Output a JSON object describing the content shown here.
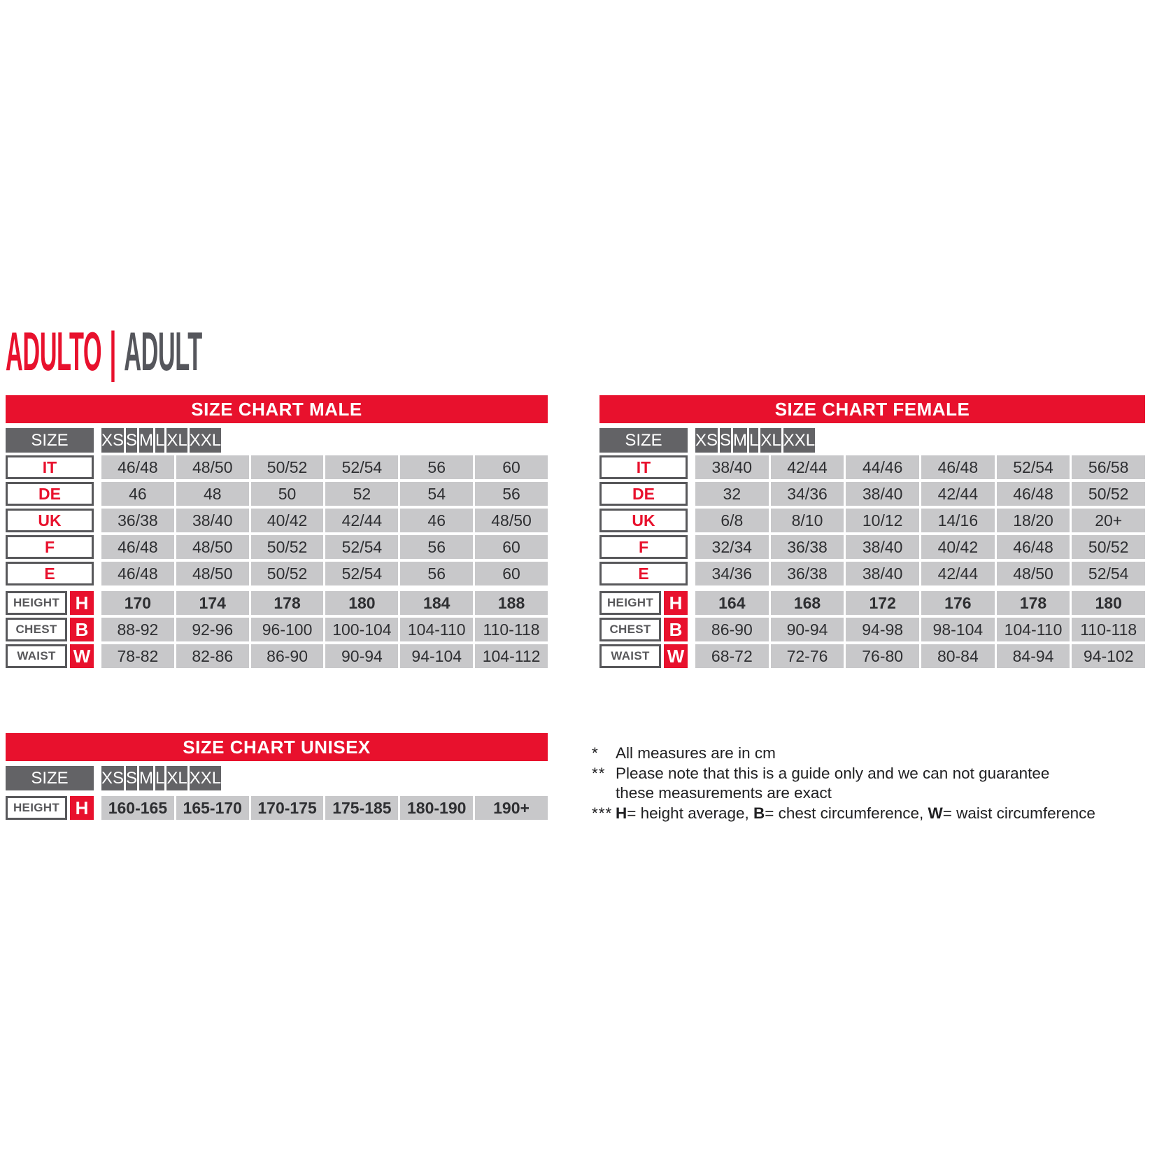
{
  "header": {
    "title_primary": "ADULTO",
    "separator": "|",
    "title_secondary": "ADULT"
  },
  "size_label": "SIZE",
  "columns": [
    "XS",
    "S",
    "M",
    "L",
    "XL",
    "XXL"
  ],
  "tables": {
    "male": {
      "title": "SIZE CHART MALE",
      "rows": [
        {
          "label": "IT",
          "values": [
            "46/48",
            "48/50",
            "50/52",
            "52/54",
            "56",
            "60"
          ]
        },
        {
          "label": "DE",
          "values": [
            "46",
            "48",
            "50",
            "52",
            "54",
            "56"
          ]
        },
        {
          "label": "UK",
          "values": [
            "36/38",
            "38/40",
            "40/42",
            "42/44",
            "46",
            "48/50"
          ]
        },
        {
          "label": "F",
          "values": [
            "46/48",
            "48/50",
            "50/52",
            "52/54",
            "56",
            "60"
          ]
        },
        {
          "label": "E",
          "values": [
            "46/48",
            "48/50",
            "50/52",
            "52/54",
            "56",
            "60"
          ]
        }
      ],
      "measures": [
        {
          "label": "HEIGHT",
          "letter": "H",
          "bold": true,
          "values": [
            "170",
            "174",
            "178",
            "180",
            "184",
            "188"
          ]
        },
        {
          "label": "CHEST",
          "letter": "B",
          "bold": false,
          "values": [
            "88-92",
            "92-96",
            "96-100",
            "100-104",
            "104-110",
            "110-118"
          ]
        },
        {
          "label": "WAIST",
          "letter": "W",
          "bold": false,
          "values": [
            "78-82",
            "82-86",
            "86-90",
            "90-94",
            "94-104",
            "104-112"
          ]
        }
      ]
    },
    "female": {
      "title": "SIZE CHART FEMALE",
      "rows": [
        {
          "label": "IT",
          "values": [
            "38/40",
            "42/44",
            "44/46",
            "46/48",
            "52/54",
            "56/58"
          ]
        },
        {
          "label": "DE",
          "values": [
            "32",
            "34/36",
            "38/40",
            "42/44",
            "46/48",
            "50/52"
          ]
        },
        {
          "label": "UK",
          "values": [
            "6/8",
            "8/10",
            "10/12",
            "14/16",
            "18/20",
            "20+"
          ]
        },
        {
          "label": "F",
          "values": [
            "32/34",
            "36/38",
            "38/40",
            "40/42",
            "46/48",
            "50/52"
          ]
        },
        {
          "label": "E",
          "values": [
            "34/36",
            "36/38",
            "38/40",
            "42/44",
            "48/50",
            "52/54"
          ]
        }
      ],
      "measures": [
        {
          "label": "HEIGHT",
          "letter": "H",
          "bold": true,
          "values": [
            "164",
            "168",
            "172",
            "176",
            "178",
            "180"
          ]
        },
        {
          "label": "CHEST",
          "letter": "B",
          "bold": false,
          "values": [
            "86-90",
            "90-94",
            "94-98",
            "98-104",
            "104-110",
            "110-118"
          ]
        },
        {
          "label": "WAIST",
          "letter": "W",
          "bold": false,
          "values": [
            "68-72",
            "72-76",
            "76-80",
            "80-84",
            "84-94",
            "94-102"
          ]
        }
      ]
    },
    "unisex": {
      "title": "SIZE CHART UNISEX",
      "rows": [],
      "measures": [
        {
          "label": "HEIGHT",
          "letter": "H",
          "bold": true,
          "values": [
            "160-165",
            "165-170",
            "170-175",
            "175-185",
            "180-190",
            "190+"
          ]
        }
      ]
    }
  },
  "notes": [
    {
      "marker": "*",
      "lines": [
        [
          {
            "t": "All measures are in cm",
            "b": false
          }
        ]
      ]
    },
    {
      "marker": "**",
      "lines": [
        [
          {
            "t": "Please note that this is a guide only and we can not guarantee",
            "b": false
          }
        ],
        [
          {
            "t": "these measurements are exact",
            "b": false
          }
        ]
      ]
    },
    {
      "marker": "***",
      "lines": [
        [
          {
            "t": "H",
            "b": true
          },
          {
            "t": "= height average, ",
            "b": false
          },
          {
            "t": "B",
            "b": true
          },
          {
            "t": "= chest circumference, ",
            "b": false
          },
          {
            "t": "W",
            "b": true
          },
          {
            "t": "= waist circumference",
            "b": false
          }
        ]
      ]
    }
  ],
  "colors": {
    "red": "#e8112d",
    "header_gray": "#636366",
    "cell_gray": "#c8c8ca",
    "border_gray": "#58585b",
    "title_gray": "#55565c",
    "text_dark": "#2e2f32"
  }
}
